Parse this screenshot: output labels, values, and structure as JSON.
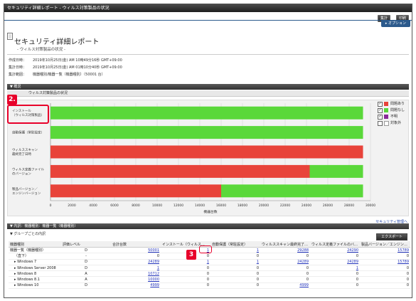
{
  "window": {
    "title": "セキュリティ詳細レポート - ウィルス対策製品の状況"
  },
  "toolbar": {
    "summary_label": "集計",
    "print_label": "印刷",
    "options_tab": "▸ オプション"
  },
  "report": {
    "title": "セキュリティ詳細レポート",
    "subtitle": "- ウィルス対策製品の状況 -",
    "meta": [
      {
        "label": "作成日時：",
        "value": "2019年10月25日(金) AM 10時49分16秒 GMT+09:00"
      },
      {
        "label": "集計日時：",
        "value": "2019年10月25日(金) AM 01時10分40秒 GMT+09:00"
      },
      {
        "label": "集計範囲：",
        "value": "機器種別/機器一覧（機器種別）（50001 台）"
      }
    ]
  },
  "overview": {
    "header": "▼ 概況",
    "subheader": "ウィルス対策製品の状況"
  },
  "legend": [
    {
      "label": "問題あり",
      "checked": "✓",
      "color": "#e8433a"
    },
    {
      "label": "問題なし",
      "checked": "✓",
      "color": "#5ad83a"
    },
    {
      "label": "不明",
      "checked": "✓",
      "color": "#8a2a9a"
    },
    {
      "label": "対象外",
      "checked": "",
      "color": "#ffffff"
    }
  ],
  "chart_data": {
    "type": "bar",
    "orientation": "horizontal",
    "stacked": true,
    "categories": [
      "インストール\n（ウィルス対策製品）",
      "自動保護（常駐設定）",
      "ウィルススキャン\n最終完了日時",
      "ウィルス定義ファイル\nのバージョン",
      "製品バージョン／\nエンジンバージョン"
    ],
    "series": [
      {
        "name": "問題あり",
        "color": "#e8433a",
        "values": [
          0,
          0,
          29300,
          24300,
          16000
        ]
      },
      {
        "name": "問題なし",
        "color": "#5ad83a",
        "values": [
          29300,
          29300,
          0,
          5000,
          13300
        ]
      }
    ],
    "xlabel": "機器台数",
    "xlim": [
      0,
      30000
    ],
    "xticks": [
      0,
      2000,
      4000,
      6000,
      8000,
      10000,
      12000,
      14000,
      16000,
      18000,
      20000,
      22000,
      24000,
      26000,
      28000,
      30000
    ],
    "grid": true,
    "legend": "right"
  },
  "security_link": "セキュリティ管理へ",
  "detail": {
    "header": "▼ 内訳：機器種別：機器一覧（機器種別）",
    "subheader": "▼ グループごとの内訳",
    "export_label": "エクスポート",
    "columns": [
      "機器種別",
      "評価レベル",
      "合計台数",
      "インストール（ウィルス…",
      "自動保護（常駐設定）",
      "ウィルススキャン最終完了…",
      "ウィルス定義ファイルのバ…",
      "製品バージョン／エンジン…"
    ],
    "rows": [
      {
        "name": "機器一覧（機器種別）",
        "level": "D",
        "total": "50001",
        "c1": "1",
        "c2": "1",
        "c3": "29288",
        "c4": "24290",
        "c5": "15789"
      },
      {
        "name": "（直下）",
        "level": "-",
        "total": "0",
        "c1": "0",
        "c2": "0",
        "c3": "0",
        "c4": "0",
        "c5": "0"
      },
      {
        "name": "▸ Windows 7",
        "level": "D",
        "total": "24289",
        "c1": "1",
        "c2": "1",
        "c3": "24289",
        "c4": "24289",
        "c5": "15789"
      },
      {
        "name": "▸ Windows Server 2008",
        "level": "D",
        "total": "1",
        "c1": "0",
        "c2": "0",
        "c3": "0",
        "c4": "1",
        "c5": "0"
      },
      {
        "name": "▸ Windows 8",
        "level": "A",
        "total": "10712",
        "c1": "0",
        "c2": "0",
        "c3": "0",
        "c4": "0",
        "c5": "0"
      },
      {
        "name": "▸ Windows 8.1",
        "level": "A",
        "total": "10000",
        "c1": "0",
        "c2": "0",
        "c3": "0",
        "c4": "0",
        "c5": "0"
      },
      {
        "name": "▸ Windows 10",
        "level": "D",
        "total": "4999",
        "c1": "0",
        "c2": "0",
        "c3": "4999",
        "c4": "0",
        "c5": "0"
      }
    ]
  },
  "callouts": [
    {
      "number": "2."
    },
    {
      "number": "3"
    }
  ]
}
